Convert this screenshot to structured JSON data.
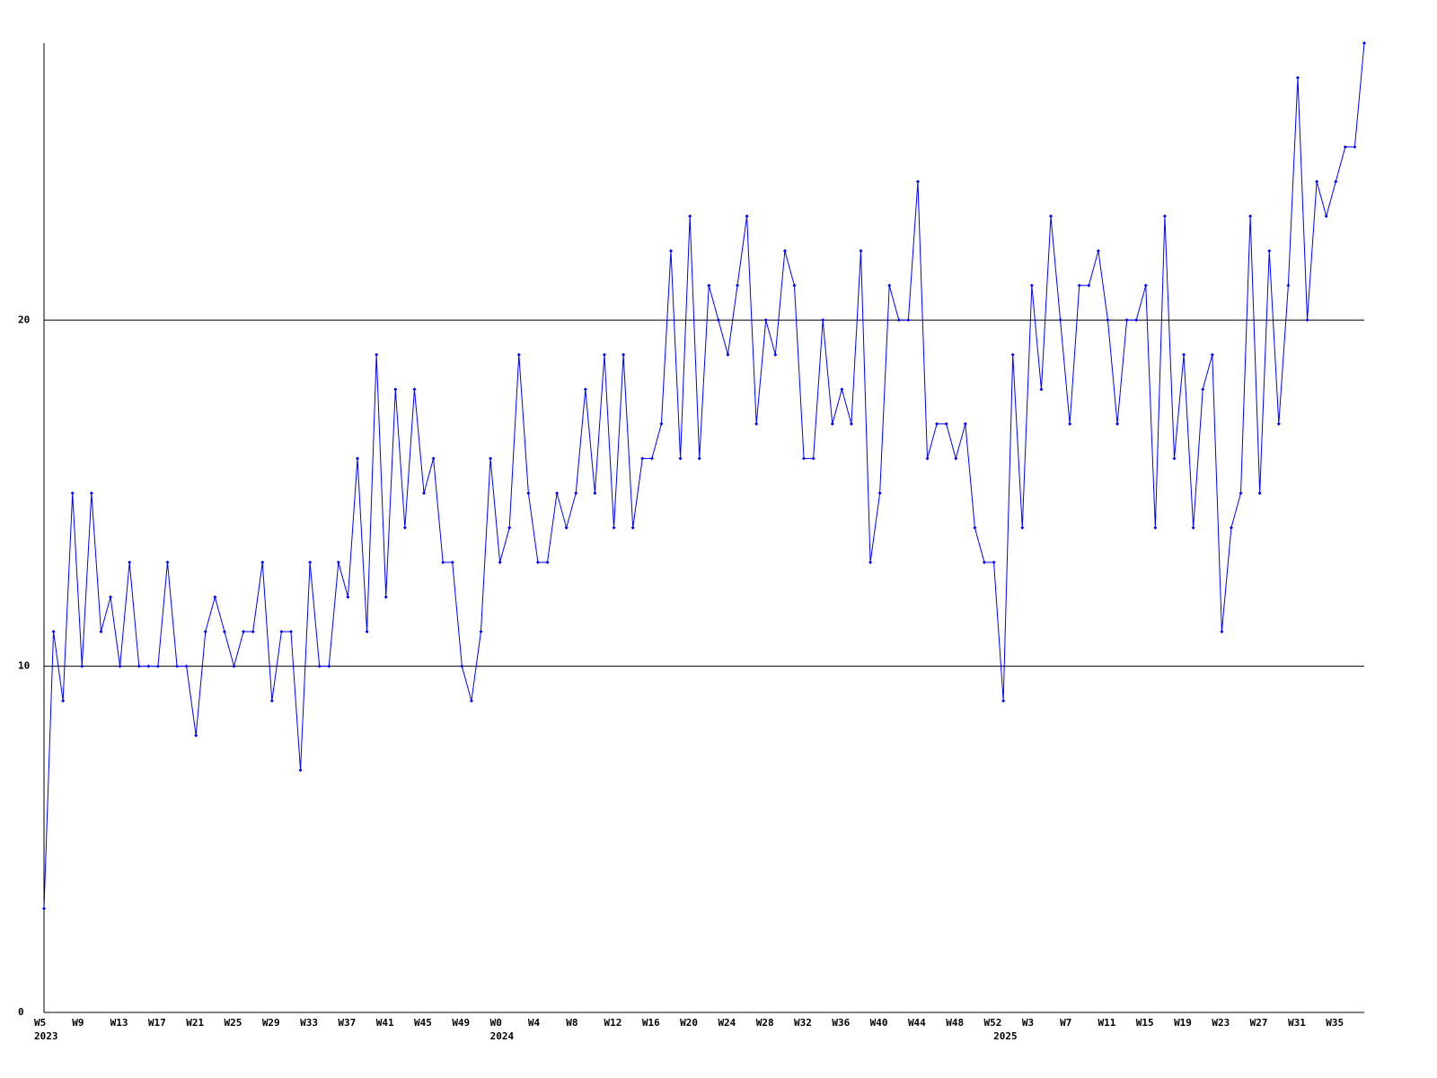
{
  "chart_data": {
    "type": "line",
    "categories": [
      "W5",
      null,
      null,
      null,
      "W9",
      null,
      null,
      null,
      "W13",
      null,
      null,
      null,
      "W17",
      null,
      null,
      null,
      "W21",
      null,
      null,
      null,
      "W25",
      null,
      null,
      null,
      "W29",
      null,
      null,
      null,
      "W33",
      null,
      null,
      null,
      "W37",
      null,
      null,
      null,
      "W41",
      null,
      null,
      null,
      "W45",
      null,
      null,
      null,
      "W49",
      null,
      null,
      null,
      "W0",
      null,
      null,
      null,
      "W4",
      null,
      null,
      null,
      "W8",
      null,
      null,
      null,
      "W12",
      null,
      null,
      null,
      "W16",
      null,
      null,
      null,
      "W20",
      null,
      null,
      null,
      "W24",
      null,
      null,
      null,
      "W28",
      null,
      null,
      null,
      "W32",
      null,
      null,
      null,
      "W36",
      null,
      null,
      null,
      "W40",
      null,
      null,
      null,
      "W44",
      null,
      null,
      null,
      "W48",
      null,
      null,
      null,
      "W52",
      null,
      null,
      null,
      "W3",
      null,
      null,
      null,
      "W7",
      null,
      null,
      null,
      "W11",
      null,
      null,
      null,
      "W15",
      null,
      null,
      null,
      "W19",
      null,
      null,
      null,
      "W23",
      null,
      null,
      null,
      "W27",
      null,
      null,
      null,
      "W31",
      null,
      null,
      null,
      "W35",
      null,
      null,
      null
    ],
    "year_labels": [
      "2023",
      null,
      null,
      null,
      null,
      null,
      null,
      null,
      null,
      null,
      null,
      null,
      null,
      null,
      null,
      null,
      null,
      null,
      null,
      null,
      null,
      null,
      null,
      null,
      null,
      null,
      null,
      null,
      null,
      null,
      null,
      null,
      null,
      null,
      null,
      null,
      null,
      null,
      null,
      null,
      null,
      null,
      null,
      null,
      null,
      null,
      null,
      null,
      "2024",
      null,
      null,
      null,
      null,
      null,
      null,
      null,
      null,
      null,
      null,
      null,
      null,
      null,
      null,
      null,
      null,
      null,
      null,
      null,
      null,
      null,
      null,
      null,
      null,
      null,
      null,
      null,
      null,
      null,
      null,
      null,
      null,
      null,
      null,
      null,
      null,
      null,
      null,
      null,
      null,
      null,
      null,
      null,
      null,
      null,
      null,
      null,
      null,
      null,
      null,
      null,
      null,
      "2025",
      null,
      null,
      null,
      null,
      null,
      null,
      null,
      null,
      null,
      null,
      null,
      null,
      null,
      null,
      null,
      null,
      null,
      null,
      null,
      null,
      null,
      null,
      null,
      null,
      null,
      null,
      null,
      null,
      null,
      null,
      null,
      null,
      null,
      null,
      null,
      null,
      null
    ],
    "series": [
      {
        "color": "#0000ff",
        "values": [
          3,
          11,
          9,
          15,
          10,
          15,
          11,
          12,
          10,
          13,
          10,
          10,
          10,
          13,
          10,
          10,
          8,
          11,
          12,
          11,
          10,
          11,
          11,
          13,
          9,
          11,
          11,
          7,
          13,
          10,
          10,
          13,
          12,
          16,
          11,
          19,
          12,
          18,
          14,
          18,
          15,
          16,
          13,
          13,
          10,
          9,
          11,
          16,
          13,
          14,
          19,
          15,
          13,
          13,
          15,
          14,
          15,
          18,
          15,
          19,
          14,
          19,
          14,
          16,
          16,
          17,
          22,
          16,
          23,
          16,
          21,
          20,
          19,
          21,
          23,
          17,
          20,
          19,
          22,
          21,
          16,
          16,
          20,
          17,
          18,
          17,
          22,
          13,
          15,
          21,
          20,
          20,
          24,
          16,
          17,
          17,
          16,
          17,
          14,
          13,
          13,
          9,
          19,
          14,
          21,
          18,
          23,
          20,
          17,
          21,
          21,
          22,
          20,
          17,
          20,
          20,
          21,
          14,
          23,
          16,
          19,
          14,
          18,
          19,
          11,
          14,
          15,
          23,
          15,
          22,
          17,
          21,
          27,
          20,
          24,
          23,
          24,
          25,
          25,
          28
        ]
      }
    ],
    "ylim": [
      0,
      28
    ],
    "yticks": [
      0,
      10,
      20
    ],
    "grid": true
  }
}
